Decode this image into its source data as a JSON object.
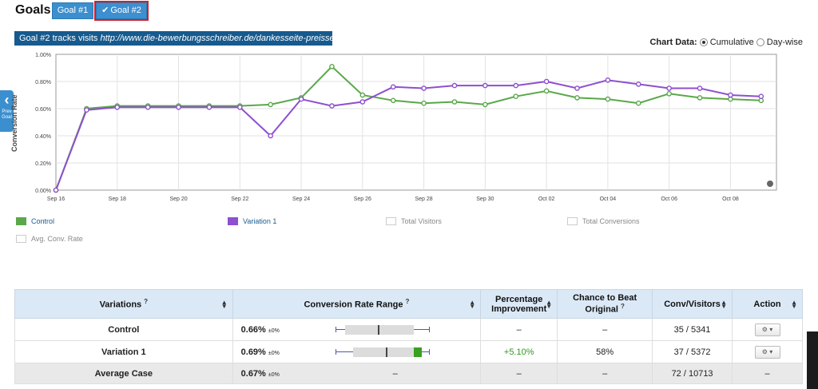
{
  "header": {
    "goals_label": "Goals:",
    "goal1_label": "Goal #1",
    "goal2_label": "Goal #2",
    "track_prefix": "Goal #2 tracks visits",
    "track_url": "http://www.die-bewerbungsschreiber.de/dankesseite-preisseite"
  },
  "chart_controls": {
    "label": "Chart Data:",
    "option_cumulative": "Cumulative",
    "option_daywise": "Day-wise",
    "selected": "Cumulative"
  },
  "side_tab": {
    "label": "Prev Goal",
    "icon": "chevron-left-icon"
  },
  "chart_data": {
    "type": "line",
    "ylabel": "Conversion Rate",
    "y_ticks": [
      "0.00%",
      "0.20%",
      "0.40%",
      "0.60%",
      "0.80%",
      "1.00%"
    ],
    "ylim": [
      0,
      1.0
    ],
    "x_tick_labels": [
      "Sep 16",
      "Sep 18",
      "Sep 20",
      "Sep 22",
      "Sep 24",
      "Sep 26",
      "Sep 28",
      "Sep 30",
      "Oct 02",
      "Oct 04",
      "Oct 06",
      "Oct 08"
    ],
    "x": [
      "Sep 16",
      "Sep 17",
      "Sep 18",
      "Sep 19",
      "Sep 20",
      "Sep 21",
      "Sep 22",
      "Sep 23",
      "Sep 24",
      "Sep 25",
      "Sep 26",
      "Sep 27",
      "Sep 28",
      "Sep 29",
      "Sep 30",
      "Oct 01",
      "Oct 02",
      "Oct 03",
      "Oct 04",
      "Oct 05",
      "Oct 06",
      "Oct 07",
      "Oct 08",
      "Oct 09"
    ],
    "grid": true,
    "series": [
      {
        "name": "Control",
        "color": "#5aa84a",
        "values": [
          0.0,
          0.6,
          0.62,
          0.62,
          0.62,
          0.62,
          0.62,
          0.63,
          0.68,
          0.91,
          0.7,
          0.66,
          0.64,
          0.65,
          0.63,
          0.69,
          0.73,
          0.68,
          0.67,
          0.64,
          0.71,
          0.68,
          0.67,
          0.66
        ]
      },
      {
        "name": "Variation 1",
        "color": "#8e4fd0",
        "values": [
          0.0,
          0.59,
          0.61,
          0.61,
          0.61,
          0.61,
          0.61,
          0.4,
          0.67,
          0.62,
          0.65,
          0.76,
          0.75,
          0.77,
          0.77,
          0.77,
          0.8,
          0.75,
          0.81,
          0.78,
          0.75,
          0.75,
          0.7,
          0.69
        ]
      }
    ]
  },
  "legend": [
    {
      "label": "Control",
      "color": "#5aa84a",
      "active": true
    },
    {
      "label": "Variation 1",
      "color": "#8e4fd0",
      "active": true
    },
    {
      "label": "Total Visitors",
      "color": "#ffffff",
      "active": false
    },
    {
      "label": "Total Conversions",
      "color": "#ffffff",
      "active": false
    },
    {
      "label": "Avg. Conv. Rate",
      "color": "#ffffff",
      "active": false
    }
  ],
  "table": {
    "headers": {
      "variations": "Variations",
      "range": "Conversion Rate Range",
      "improvement_1": "Percentage",
      "improvement_2": "Improvement",
      "chance_1": "Chance to Beat",
      "chance_2": "Original",
      "conv": "Conv/Visitors",
      "action": "Action"
    },
    "help_glyph": "?",
    "rows": [
      {
        "name": "Control",
        "rate": "0.66%",
        "pm": "±0%",
        "improvement": "–",
        "chance": "–",
        "conv": "35 / 5341",
        "range_low": 0.5,
        "range_mid": 0.66,
        "range_high": 0.82,
        "winner": false
      },
      {
        "name": "Variation 1",
        "rate": "0.69%",
        "pm": "±0%",
        "improvement": "+5.10%",
        "chance": "58%",
        "conv": "37 / 5372",
        "range_low": 0.52,
        "range_mid": 0.69,
        "range_high": 0.86,
        "winner": true
      }
    ],
    "average": {
      "name": "Average Case",
      "rate": "0.67%",
      "pm": "±0%",
      "range": "–",
      "improvement": "–",
      "chance": "–",
      "conv": "72 / 10713",
      "action": "–"
    },
    "action_button": "gear-dropdown-icon"
  }
}
